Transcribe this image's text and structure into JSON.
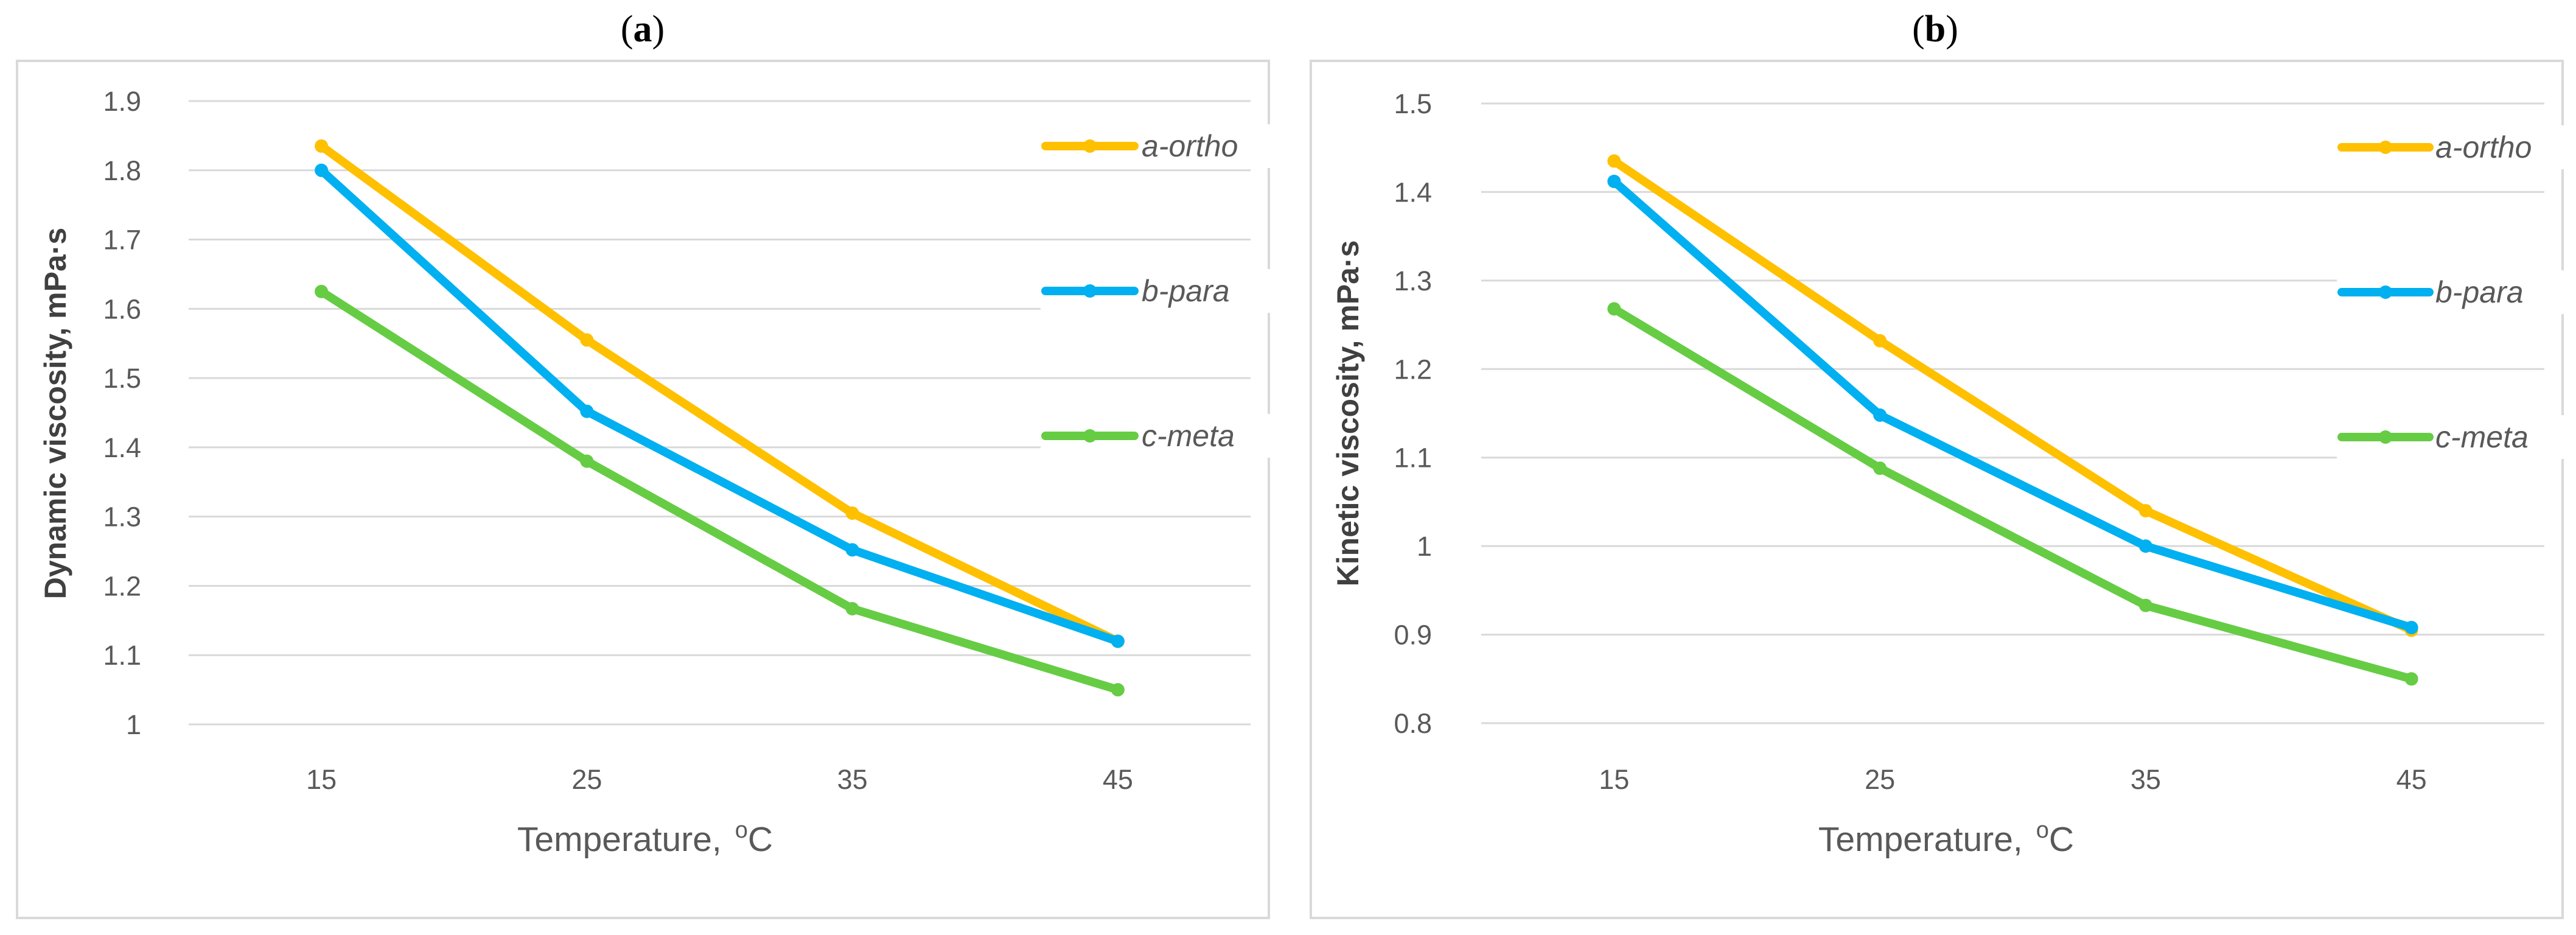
{
  "colors": {
    "a_ortho": "#FFC000",
    "b_para": "#00B0F0",
    "c_meta": "#66CC44",
    "grid": "#D9D9D9",
    "frame": "#D9D9D9"
  },
  "chart_data": [
    {
      "type": "line",
      "panel_label": "a",
      "title": "",
      "xlabel": "Temperature,",
      "xlabel_unit": "oC",
      "xlabel_unit_sup": "o",
      "xlabel_unit_main": "C",
      "ylabel": "Dynamic viscosity, mPa·s",
      "categories": [
        "15",
        "25",
        "35",
        "45"
      ],
      "yticks": [
        "1",
        "1.1",
        "1.2",
        "1.3",
        "1.4",
        "1.5",
        "1.6",
        "1.7",
        "1.8",
        "1.9"
      ],
      "ylim": [
        1,
        1.9
      ],
      "series": [
        {
          "name": "a-ortho",
          "color": "#FFC000",
          "values": [
            1.835,
            1.555,
            1.305,
            1.12
          ]
        },
        {
          "name": "b-para",
          "color": "#00B0F0",
          "values": [
            1.8,
            1.452,
            1.252,
            1.12
          ]
        },
        {
          "name": "c-meta",
          "color": "#66CC44",
          "values": [
            1.625,
            1.38,
            1.167,
            1.05
          ]
        }
      ],
      "legend_position": "top-right",
      "grid": true
    },
    {
      "type": "line",
      "panel_label": "b",
      "title": "",
      "xlabel": "Temperature,",
      "xlabel_unit": "oC",
      "xlabel_unit_sup": "o",
      "xlabel_unit_main": "C",
      "ylabel": "Kinetic viscosity, mPa·s",
      "categories": [
        "15",
        "25",
        "35",
        "45"
      ],
      "yticks": [
        "0.8",
        "0.9",
        "1",
        "1.1",
        "1.2",
        "1.3",
        "1.4",
        "1.5"
      ],
      "ylim": [
        0.8,
        1.5
      ],
      "series": [
        {
          "name": "a-ortho",
          "color": "#FFC000",
          "values": [
            1.435,
            1.232,
            1.04,
            0.905
          ]
        },
        {
          "name": "b-para",
          "color": "#00B0F0",
          "values": [
            1.412,
            1.148,
            1.0,
            0.908
          ]
        },
        {
          "name": "c-meta",
          "color": "#66CC44",
          "values": [
            1.268,
            1.088,
            0.933,
            0.85
          ]
        }
      ],
      "legend_position": "top-right",
      "grid": true
    }
  ]
}
